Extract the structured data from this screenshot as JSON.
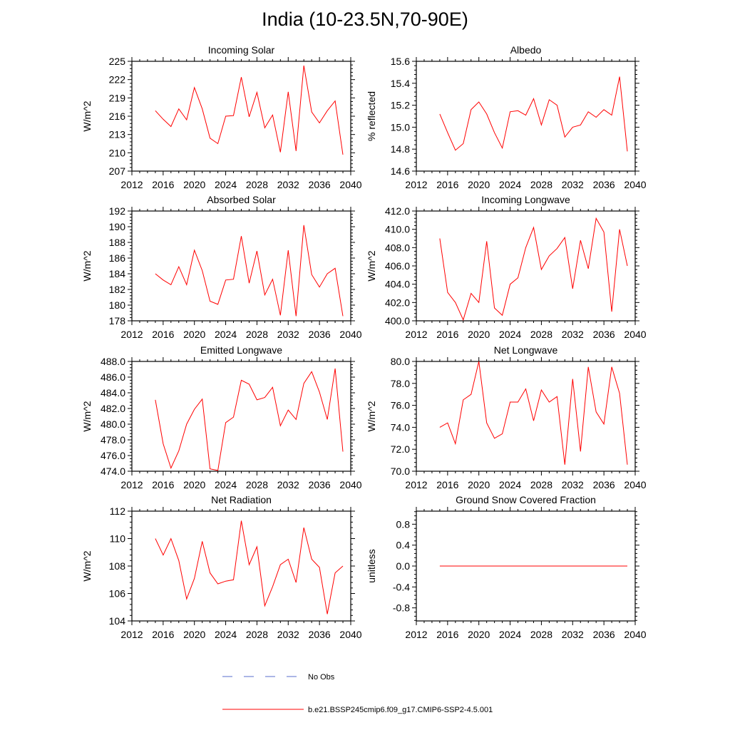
{
  "title": "India (10-23.5N,70-90E)",
  "legend": {
    "entries": [
      {
        "label": "No Obs",
        "color": "#5a6ecc",
        "style": "dashed"
      },
      {
        "label": "b.e21.BSSP245cmip6.f09_g17.CMIP6-SSP2-4.5.001",
        "color": "#ff0000",
        "style": "solid"
      }
    ]
  },
  "chart_data": [
    {
      "type": "line",
      "title": "Incoming Solar",
      "xlabel": "",
      "ylabel": "W/m^2",
      "xlim": [
        2012,
        2040
      ],
      "ylim": [
        207,
        225
      ],
      "xticks": [
        2012,
        2016,
        2020,
        2024,
        2028,
        2032,
        2036,
        2040
      ],
      "yticks": [
        207,
        210,
        213,
        216,
        219,
        222,
        225
      ],
      "ytick_labels": [
        "207",
        "210",
        "213",
        "216",
        "219",
        "222",
        "225"
      ],
      "x": [
        2015,
        2016,
        2017,
        2018,
        2019,
        2020,
        2021,
        2022,
        2023,
        2024,
        2025,
        2026,
        2027,
        2028,
        2029,
        2030,
        2031,
        2032,
        2033,
        2034,
        2035,
        2036,
        2037,
        2038,
        2039
      ],
      "series": [
        {
          "name": "b.e21.BSSP245cmip6.f09_g17.CMIP6-SSP2-4.5.001",
          "color": "#ff0000",
          "values": [
            216.9,
            215.5,
            214.3,
            217.2,
            215.4,
            220.7,
            217.2,
            212.4,
            211.5,
            216.0,
            216.1,
            222.4,
            215.9,
            219.9,
            214.1,
            216.2,
            210.1,
            220.0,
            210.3,
            224.3,
            216.7,
            214.9,
            216.9,
            218.5,
            209.7
          ]
        }
      ]
    },
    {
      "type": "line",
      "title": "Albedo",
      "xlabel": "",
      "ylabel": "% reflected",
      "xlim": [
        2012,
        2040
      ],
      "ylim": [
        14.6,
        15.6
      ],
      "xticks": [
        2012,
        2016,
        2020,
        2024,
        2028,
        2032,
        2036,
        2040
      ],
      "yticks": [
        14.6,
        14.8,
        15.0,
        15.2,
        15.4,
        15.6
      ],
      "ytick_labels": [
        "14.6",
        "14.8",
        "15.0",
        "15.2",
        "15.4",
        "15.6"
      ],
      "x": [
        2015,
        2016,
        2017,
        2018,
        2019,
        2020,
        2021,
        2022,
        2023,
        2024,
        2025,
        2026,
        2027,
        2028,
        2029,
        2030,
        2031,
        2032,
        2033,
        2034,
        2035,
        2036,
        2037,
        2038,
        2039
      ],
      "series": [
        {
          "name": "b.e21.BSSP245cmip6.f09_g17.CMIP6-SSP2-4.5.001",
          "color": "#ff0000",
          "values": [
            15.12,
            14.95,
            14.79,
            14.85,
            15.16,
            15.23,
            15.12,
            14.95,
            14.81,
            15.14,
            15.15,
            15.11,
            15.26,
            15.02,
            15.25,
            15.2,
            14.91,
            15.0,
            15.02,
            15.14,
            15.09,
            15.16,
            15.11,
            15.46,
            14.78
          ]
        }
      ]
    },
    {
      "type": "line",
      "title": "Absorbed Solar",
      "xlabel": "",
      "ylabel": "W/m^2",
      "xlim": [
        2012,
        2040
      ],
      "ylim": [
        178,
        192
      ],
      "xticks": [
        2012,
        2016,
        2020,
        2024,
        2028,
        2032,
        2036,
        2040
      ],
      "yticks": [
        178,
        180,
        182,
        184,
        186,
        188,
        190,
        192
      ],
      "ytick_labels": [
        "178",
        "180",
        "182",
        "184",
        "186",
        "188",
        "190",
        "192"
      ],
      "x": [
        2015,
        2016,
        2017,
        2018,
        2019,
        2020,
        2021,
        2022,
        2023,
        2024,
        2025,
        2026,
        2027,
        2028,
        2029,
        2030,
        2031,
        2032,
        2033,
        2034,
        2035,
        2036,
        2037,
        2038,
        2039
      ],
      "series": [
        {
          "name": "b.e21.BSSP245cmip6.f09_g17.CMIP6-SSP2-4.5.001",
          "color": "#ff0000",
          "values": [
            184.0,
            183.2,
            182.6,
            184.9,
            182.6,
            187.0,
            184.4,
            180.5,
            180.1,
            183.2,
            183.3,
            188.8,
            182.8,
            186.9,
            181.3,
            183.3,
            178.7,
            187.0,
            178.6,
            190.2,
            183.9,
            182.3,
            184.0,
            184.7,
            178.6
          ]
        }
      ]
    },
    {
      "type": "line",
      "title": "Incoming Longwave",
      "xlabel": "",
      "ylabel": "W/m^2",
      "xlim": [
        2012,
        2040
      ],
      "ylim": [
        400,
        412
      ],
      "xticks": [
        2012,
        2016,
        2020,
        2024,
        2028,
        2032,
        2036,
        2040
      ],
      "yticks": [
        400,
        402,
        404,
        406,
        408,
        410,
        412
      ],
      "ytick_labels": [
        "400.0",
        "402.0",
        "404.0",
        "406.0",
        "408.0",
        "410.0",
        "412.0"
      ],
      "x": [
        2015,
        2016,
        2017,
        2018,
        2019,
        2020,
        2021,
        2022,
        2023,
        2024,
        2025,
        2026,
        2027,
        2028,
        2029,
        2030,
        2031,
        2032,
        2033,
        2034,
        2035,
        2036,
        2037,
        2038,
        2039
      ],
      "series": [
        {
          "name": "b.e21.BSSP245cmip6.f09_g17.CMIP6-SSP2-4.5.001",
          "color": "#ff0000",
          "values": [
            409.0,
            403.1,
            402.0,
            400.1,
            403.0,
            402.0,
            408.7,
            401.4,
            400.6,
            404.0,
            404.7,
            408.0,
            410.2,
            405.6,
            407.1,
            407.9,
            409.1,
            403.5,
            408.8,
            405.7,
            411.2,
            409.7,
            401.0,
            410.0,
            406.0
          ]
        }
      ]
    },
    {
      "type": "line",
      "title": "Emitted Longwave",
      "xlabel": "",
      "ylabel": "W/m^2",
      "xlim": [
        2012,
        2040
      ],
      "ylim": [
        474,
        488
      ],
      "xticks": [
        2012,
        2016,
        2020,
        2024,
        2028,
        2032,
        2036,
        2040
      ],
      "yticks": [
        474,
        476,
        478,
        480,
        482,
        484,
        486,
        488
      ],
      "ytick_labels": [
        "474.0",
        "476.0",
        "478.0",
        "480.0",
        "482.0",
        "484.0",
        "486.0",
        "488.0"
      ],
      "x": [
        2015,
        2016,
        2017,
        2018,
        2019,
        2020,
        2021,
        2022,
        2023,
        2024,
        2025,
        2026,
        2027,
        2028,
        2029,
        2030,
        2031,
        2032,
        2033,
        2034,
        2035,
        2036,
        2037,
        2038,
        2039
      ],
      "series": [
        {
          "name": "b.e21.BSSP245cmip6.f09_g17.CMIP6-SSP2-4.5.001",
          "color": "#ff0000",
          "values": [
            483.1,
            477.5,
            474.4,
            476.6,
            480.0,
            481.9,
            483.2,
            474.3,
            474.1,
            480.2,
            480.9,
            485.6,
            485.1,
            483.1,
            483.4,
            484.7,
            479.8,
            481.8,
            480.6,
            485.2,
            486.7,
            484.1,
            480.6,
            487.1,
            476.5
          ]
        }
      ]
    },
    {
      "type": "line",
      "title": "Net Longwave",
      "xlabel": "",
      "ylabel": "W/m^2",
      "xlim": [
        2012,
        2040
      ],
      "ylim": [
        70,
        80
      ],
      "xticks": [
        2012,
        2016,
        2020,
        2024,
        2028,
        2032,
        2036,
        2040
      ],
      "yticks": [
        70,
        72,
        74,
        76,
        78,
        80
      ],
      "ytick_labels": [
        "70.0",
        "72.0",
        "74.0",
        "76.0",
        "78.0",
        "80.0"
      ],
      "x": [
        2015,
        2016,
        2017,
        2018,
        2019,
        2020,
        2021,
        2022,
        2023,
        2024,
        2025,
        2026,
        2027,
        2028,
        2029,
        2030,
        2031,
        2032,
        2033,
        2034,
        2035,
        2036,
        2037,
        2038,
        2039
      ],
      "series": [
        {
          "name": "b.e21.BSSP245cmip6.f09_g17.CMIP6-SSP2-4.5.001",
          "color": "#ff0000",
          "values": [
            74.0,
            74.4,
            72.5,
            76.5,
            77.0,
            80.0,
            74.4,
            73.0,
            73.4,
            76.3,
            76.3,
            77.5,
            74.6,
            77.4,
            76.3,
            76.8,
            70.6,
            78.4,
            71.8,
            79.5,
            75.4,
            74.3,
            79.5,
            77.1,
            70.6
          ]
        }
      ]
    },
    {
      "type": "line",
      "title": "Net Radiation",
      "xlabel": "",
      "ylabel": "W/m^2",
      "xlim": [
        2012,
        2040
      ],
      "ylim": [
        104,
        112
      ],
      "xticks": [
        2012,
        2016,
        2020,
        2024,
        2028,
        2032,
        2036,
        2040
      ],
      "yticks": [
        104,
        106,
        108,
        110,
        112
      ],
      "ytick_labels": [
        "104",
        "106",
        "108",
        "110",
        "112"
      ],
      "x": [
        2015,
        2016,
        2017,
        2018,
        2019,
        2020,
        2021,
        2022,
        2023,
        2024,
        2025,
        2026,
        2027,
        2028,
        2029,
        2030,
        2031,
        2032,
        2033,
        2034,
        2035,
        2036,
        2037,
        2038,
        2039
      ],
      "series": [
        {
          "name": "b.e21.BSSP245cmip6.f09_g17.CMIP6-SSP2-4.5.001",
          "color": "#ff0000",
          "values": [
            110.0,
            108.8,
            110.0,
            108.4,
            105.6,
            107.1,
            109.8,
            107.5,
            106.7,
            106.9,
            107.0,
            111.3,
            108.1,
            109.4,
            105.1,
            106.5,
            108.1,
            108.5,
            106.8,
            110.8,
            108.5,
            107.9,
            104.5,
            107.5,
            108.0
          ]
        }
      ]
    },
    {
      "type": "line",
      "title": "Ground Snow Covered Fraction",
      "xlabel": "",
      "ylabel": "unitless",
      "xlim": [
        2012,
        2040
      ],
      "ylim": [
        -1.05,
        1.05
      ],
      "xticks": [
        2012,
        2016,
        2020,
        2024,
        2028,
        2032,
        2036,
        2040
      ],
      "yticks": [
        -0.8,
        -0.4,
        0.0,
        0.4,
        0.8
      ],
      "ytick_labels": [
        "-0.8",
        "-0.4",
        "0.0",
        "0.4",
        "0.8"
      ],
      "x": [
        2015,
        2039
      ],
      "series": [
        {
          "name": "b.e21.BSSP245cmip6.f09_g17.CMIP6-SSP2-4.5.001",
          "color": "#ff0000",
          "values": [
            0.0,
            0.0
          ]
        }
      ]
    }
  ]
}
